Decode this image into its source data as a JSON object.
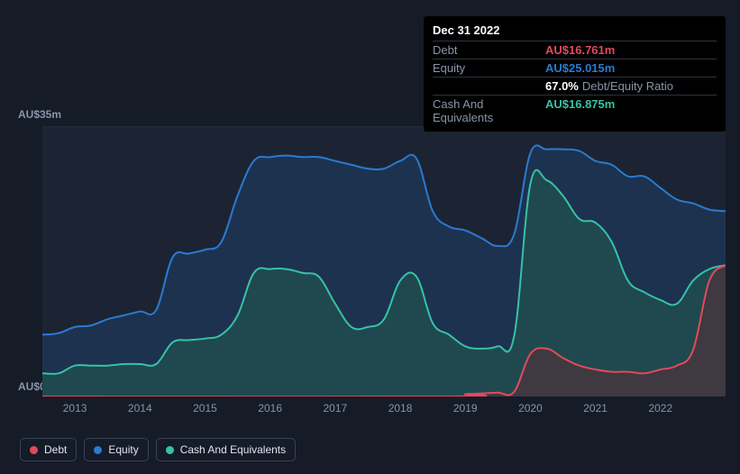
{
  "tooltip": {
    "date": "Dec 31 2022",
    "rows": [
      {
        "label": "Debt",
        "value": "AU$16.761m",
        "cls": "v-debt"
      },
      {
        "label": "Equity",
        "value": "AU$25.015m",
        "cls": "v-equity"
      },
      {
        "label": "",
        "value": "67.0%",
        "suffix": "Debt/Equity Ratio",
        "cls": "v-ratio"
      },
      {
        "label": "Cash And Equivalents",
        "value": "AU$16.875m",
        "cls": "v-cash"
      }
    ]
  },
  "chart": {
    "type": "area",
    "background_color": "#151b27",
    "ymax": 35,
    "ymin": 0,
    "ylabel_top": "AU$35m",
    "ylabel_bottom": "AU$0",
    "ylabel_color": "#8a93a8",
    "gridline_top_color": "#2b3345",
    "plot_bg": "#1c2433",
    "x_start": 2012.5,
    "x_end": 2023.0,
    "xticks": [
      2013,
      2014,
      2015,
      2016,
      2017,
      2018,
      2019,
      2020,
      2021,
      2022
    ],
    "series": [
      {
        "name": "Equity",
        "color": "#2a7ad1",
        "fill": "#1f3a60",
        "fill_opacity": 0.65,
        "points": [
          [
            2012.5,
            8
          ],
          [
            2012.75,
            8.2
          ],
          [
            2013.0,
            9
          ],
          [
            2013.25,
            9.2
          ],
          [
            2013.5,
            10
          ],
          [
            2013.75,
            10.5
          ],
          [
            2014.0,
            11
          ],
          [
            2014.25,
            11.2
          ],
          [
            2014.5,
            18
          ],
          [
            2014.75,
            18.5
          ],
          [
            2015.0,
            19
          ],
          [
            2015.25,
            20
          ],
          [
            2015.5,
            26
          ],
          [
            2015.75,
            30.5
          ],
          [
            2016.0,
            31
          ],
          [
            2016.25,
            31.2
          ],
          [
            2016.5,
            31
          ],
          [
            2016.75,
            31
          ],
          [
            2017.0,
            30.5
          ],
          [
            2017.25,
            30
          ],
          [
            2017.5,
            29.5
          ],
          [
            2017.75,
            29.5
          ],
          [
            2018.0,
            30.5
          ],
          [
            2018.25,
            30.8
          ],
          [
            2018.5,
            24
          ],
          [
            2018.75,
            22
          ],
          [
            2019.0,
            21.5
          ],
          [
            2019.25,
            20.5
          ],
          [
            2019.5,
            19.5
          ],
          [
            2019.75,
            21
          ],
          [
            2020.0,
            31.5
          ],
          [
            2020.25,
            32
          ],
          [
            2020.5,
            32
          ],
          [
            2020.75,
            31.8
          ],
          [
            2021.0,
            30.5
          ],
          [
            2021.25,
            30
          ],
          [
            2021.5,
            28.5
          ],
          [
            2021.75,
            28.5
          ],
          [
            2022.0,
            27
          ],
          [
            2022.25,
            25.5
          ],
          [
            2022.5,
            25
          ],
          [
            2022.75,
            24.2
          ],
          [
            2023.0,
            24
          ]
        ]
      },
      {
        "name": "Cash And Equivalents",
        "color": "#36c2a7",
        "fill": "#22584f",
        "fill_opacity": 0.6,
        "points": [
          [
            2012.5,
            3
          ],
          [
            2012.75,
            3
          ],
          [
            2013.0,
            4
          ],
          [
            2013.25,
            4
          ],
          [
            2013.5,
            4
          ],
          [
            2013.75,
            4.2
          ],
          [
            2014.0,
            4.2
          ],
          [
            2014.25,
            4.2
          ],
          [
            2014.5,
            7
          ],
          [
            2014.75,
            7.3
          ],
          [
            2015.0,
            7.5
          ],
          [
            2015.25,
            8
          ],
          [
            2015.5,
            10.5
          ],
          [
            2015.75,
            16
          ],
          [
            2016.0,
            16.5
          ],
          [
            2016.25,
            16.5
          ],
          [
            2016.5,
            16
          ],
          [
            2016.75,
            15.5
          ],
          [
            2017.0,
            12
          ],
          [
            2017.25,
            9
          ],
          [
            2017.5,
            9
          ],
          [
            2017.75,
            10
          ],
          [
            2018.0,
            15
          ],
          [
            2018.25,
            15.5
          ],
          [
            2018.5,
            9.5
          ],
          [
            2018.75,
            8
          ],
          [
            2019.0,
            6.5
          ],
          [
            2019.25,
            6.2
          ],
          [
            2019.5,
            6.5
          ],
          [
            2019.75,
            7.8
          ],
          [
            2020.0,
            27.5
          ],
          [
            2020.25,
            28
          ],
          [
            2020.5,
            26
          ],
          [
            2020.75,
            23
          ],
          [
            2021.0,
            22.5
          ],
          [
            2021.25,
            20
          ],
          [
            2021.5,
            15
          ],
          [
            2021.75,
            13.5
          ],
          [
            2022.0,
            12.5
          ],
          [
            2022.25,
            12
          ],
          [
            2022.5,
            15
          ],
          [
            2022.75,
            16.5
          ],
          [
            2023.0,
            17
          ]
        ]
      },
      {
        "name": "Debt",
        "color": "#e14a5c",
        "fill": "#5a2c37",
        "fill_opacity": 0.55,
        "points": [
          [
            2012.5,
            0
          ],
          [
            2018.75,
            0
          ],
          [
            2019.0,
            0.3
          ],
          [
            2019.25,
            0.4
          ],
          [
            2019.5,
            0.5
          ],
          [
            2019.75,
            0.6
          ],
          [
            2020.0,
            5.5
          ],
          [
            2020.25,
            6.2
          ],
          [
            2020.5,
            5
          ],
          [
            2020.75,
            4
          ],
          [
            2021.0,
            3.5
          ],
          [
            2021.25,
            3.2
          ],
          [
            2021.5,
            3.2
          ],
          [
            2021.75,
            3.0
          ],
          [
            2022.0,
            3.5
          ],
          [
            2022.25,
            4
          ],
          [
            2022.5,
            6
          ],
          [
            2022.75,
            15
          ],
          [
            2023.0,
            17
          ]
        ]
      }
    ]
  },
  "legend": {
    "border_color": "#3a4258",
    "text_color": "#e0e5ef",
    "items": [
      {
        "label": "Debt",
        "color": "#e14a5c"
      },
      {
        "label": "Equity",
        "color": "#2a7ad1"
      },
      {
        "label": "Cash And Equivalents",
        "color": "#36c2a7"
      }
    ]
  }
}
